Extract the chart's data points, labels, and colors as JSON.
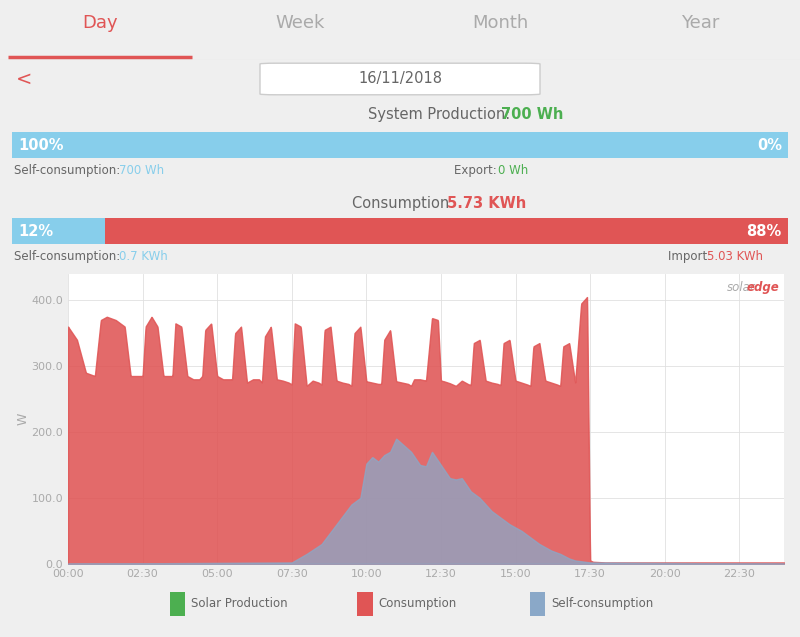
{
  "title_tabs": [
    "Day",
    "Week",
    "Month",
    "Year"
  ],
  "active_tab": "Day",
  "date": "16/11/2018",
  "system_production": "700 Wh",
  "consumption_total": "5.73 KWh",
  "self_consumption_pct": 100,
  "export_pct": 0,
  "self_consumption_wh": "700 Wh",
  "export_wh": "0 Wh",
  "import_bar_self_pct": 12,
  "import_bar_import_pct": 88,
  "self_consumption_kwh": "0.7 KWh",
  "import_kwh": "5.03 KWh",
  "bg_color": "#efefef",
  "chart_bg": "#ffffff",
  "tab_bar_bg": "#e8e8e8",
  "red_color": "#e05555",
  "blue_color": "#8aa8c8",
  "light_blue": "#87ceeb",
  "green_color": "#4caf50",
  "axis_label_color": "#aaaaaa",
  "text_color": "#666666",
  "yticks": [
    0.0,
    100.0,
    200.0,
    300.0,
    400.0
  ],
  "xtick_labels": [
    "00:00",
    "02:30",
    "05:00",
    "07:30",
    "10:00",
    "12:30",
    "15:00",
    "17:30",
    "20:00",
    "22:30"
  ],
  "consumption_x": [
    0.0,
    0.3,
    0.6,
    0.9,
    1.1,
    1.3,
    1.6,
    1.9,
    2.1,
    2.4,
    2.5,
    2.6,
    2.8,
    3.0,
    3.2,
    3.4,
    3.5,
    3.6,
    3.8,
    4.0,
    4.2,
    4.4,
    4.5,
    4.6,
    4.8,
    5.0,
    5.2,
    5.4,
    5.5,
    5.6,
    5.8,
    6.0,
    6.2,
    6.4,
    6.5,
    6.6,
    6.8,
    7.0,
    7.2,
    7.4,
    7.5,
    7.6,
    7.8,
    8.0,
    8.2,
    8.4,
    8.5,
    8.6,
    8.8,
    9.0,
    9.2,
    9.4,
    9.5,
    9.6,
    9.8,
    10.0,
    10.2,
    10.4,
    10.5,
    10.6,
    10.8,
    11.0,
    11.2,
    11.4,
    11.5,
    11.6,
    11.8,
    12.0,
    12.2,
    12.4,
    12.5,
    12.6,
    12.8,
    13.0,
    13.2,
    13.4,
    13.5,
    13.6,
    13.8,
    14.0,
    14.2,
    14.4,
    14.5,
    14.6,
    14.8,
    15.0,
    15.2,
    15.4,
    15.5,
    15.6,
    15.8,
    16.0,
    16.2,
    16.4,
    16.5,
    16.6,
    16.8,
    17.0,
    17.2,
    17.4,
    17.5,
    17.6,
    18.0,
    20.0,
    22.0,
    24.0
  ],
  "consumption_y": [
    360,
    340,
    290,
    285,
    370,
    375,
    370,
    360,
    285,
    285,
    285,
    360,
    375,
    360,
    285,
    285,
    285,
    365,
    360,
    285,
    280,
    280,
    285,
    355,
    365,
    285,
    280,
    280,
    280,
    350,
    360,
    275,
    280,
    280,
    275,
    345,
    360,
    280,
    278,
    275,
    272,
    365,
    360,
    270,
    278,
    275,
    272,
    355,
    360,
    278,
    275,
    273,
    270,
    350,
    360,
    277,
    275,
    273,
    273,
    340,
    355,
    277,
    275,
    273,
    270,
    280,
    280,
    278,
    373,
    370,
    278,
    277,
    274,
    270,
    278,
    273,
    271,
    335,
    340,
    278,
    275,
    273,
    271,
    335,
    340,
    278,
    275,
    272,
    270,
    330,
    335,
    278,
    275,
    272,
    270,
    330,
    335,
    275,
    395,
    405,
    5,
    3,
    2,
    2,
    2,
    2
  ],
  "self_x": [
    0.0,
    7.5,
    8.0,
    8.5,
    9.0,
    9.5,
    9.8,
    10.0,
    10.2,
    10.4,
    10.6,
    10.8,
    11.0,
    11.5,
    11.8,
    12.0,
    12.2,
    12.5,
    12.8,
    13.0,
    13.2,
    13.5,
    13.8,
    14.0,
    14.2,
    14.5,
    14.8,
    15.0,
    15.2,
    15.5,
    15.8,
    16.0,
    16.2,
    16.5,
    16.8,
    17.0,
    17.5,
    24.0
  ],
  "self_y": [
    0.0,
    2.0,
    15.0,
    30.0,
    60.0,
    90.0,
    100.0,
    152.0,
    162.0,
    155.0,
    165.0,
    170.0,
    190.0,
    170.0,
    150.0,
    148.0,
    170.0,
    150.0,
    130.0,
    128.0,
    130.0,
    110.0,
    100.0,
    90.0,
    80.0,
    70.0,
    60.0,
    55.0,
    50.0,
    40.0,
    30.0,
    25.0,
    20.0,
    15.0,
    8.0,
    5.0,
    2.0,
    0.0
  ]
}
